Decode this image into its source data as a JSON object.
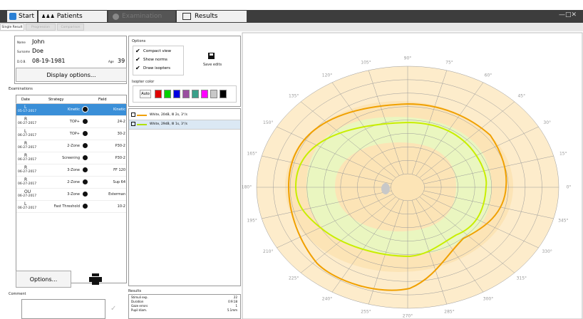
{
  "tabs": [
    "Start",
    "Patients",
    "Examination",
    "Results"
  ],
  "subtabs": [
    "Single Result",
    "Progression",
    "Comparison"
  ],
  "patient": {
    "name_label": "Name",
    "name": "John",
    "surname_label": "Surname",
    "surname": "Doe",
    "dob_label": "D.O.B.",
    "dob": "08-19-1981",
    "age_label": "Age",
    "age": "39"
  },
  "display_options": "Display options...",
  "examinations": {
    "label": "Examinations",
    "columns": [
      "Date",
      "Strategy",
      "Field"
    ],
    "rows": [
      [
        "L",
        "05-17-2017",
        "Kinetic",
        "Kinetic"
      ],
      [
        "R",
        "06-27-2017",
        "TOP+",
        "24-2"
      ],
      [
        "L",
        "06-27-2017",
        "TOP+",
        "30-2"
      ],
      [
        "R",
        "06-27-2017",
        "2-Zone",
        "P30-2"
      ],
      [
        "R",
        "06-27-2017",
        "Screening",
        "P30-2"
      ],
      [
        "R",
        "06-27-2017",
        "3-Zone",
        "FF 120"
      ],
      [
        "R",
        "06-27-2017",
        "2-Zone",
        "Sup 64"
      ],
      [
        "OU",
        "06-27-2017",
        "3-Zone",
        "Esterman"
      ],
      [
        "L",
        "06-27-2017",
        "Fast Threshold",
        "10-2"
      ]
    ]
  },
  "options_button": "Options...",
  "comment_label": "Comment",
  "options": {
    "label": "Options",
    "checks": [
      "Compact view",
      "Show norms",
      "Draw isopters"
    ],
    "save": "Save edits",
    "isopter_color": "Isopter color",
    "auto": "Auto",
    "colors": [
      "#e00000",
      "#00d000",
      "#0000e0",
      "#9a4fa0",
      "#3aa08a",
      "#ff00ff",
      "#c8c8c8",
      "#000000"
    ]
  },
  "isopters": [
    {
      "label": "White, 20dB, III 2s, 3°/s",
      "color": "#f0a000"
    },
    {
      "label": "White, 29dB, III 1s, 3°/s",
      "color": "#b0e000"
    }
  ],
  "results": {
    "label": "Results",
    "rows": [
      [
        "Stimuli exp.",
        "22"
      ],
      [
        "Duration",
        "0:9:18"
      ],
      [
        "Gaze errors",
        "1"
      ],
      [
        "Pupil diam.",
        "5.1mm"
      ]
    ]
  },
  "perimeter": {
    "angles": [
      {
        "value": 0,
        "label": "0°"
      },
      {
        "value": 15,
        "label": "15°"
      },
      {
        "value": 30,
        "label": "30°"
      },
      {
        "value": 45,
        "label": "45°"
      },
      {
        "value": 60,
        "label": "60°"
      },
      {
        "value": 75,
        "label": "75°"
      },
      {
        "value": 90,
        "label": "90°"
      },
      {
        "value": 105,
        "label": "105°"
      },
      {
        "value": 120,
        "label": "120°"
      },
      {
        "value": 135,
        "label": "135°"
      },
      {
        "value": 150,
        "label": "150°"
      },
      {
        "value": 165,
        "label": "165°"
      },
      {
        "value": 180,
        "label": "180°"
      },
      {
        "value": 195,
        "label": "195°"
      },
      {
        "value": 210,
        "label": "210°"
      },
      {
        "value": 225,
        "label": "225°"
      },
      {
        "value": 240,
        "label": "240°"
      },
      {
        "value": 255,
        "label": "255°"
      },
      {
        "value": 270,
        "label": "270°"
      },
      {
        "value": 285,
        "label": "285°"
      },
      {
        "value": 300,
        "label": "300°"
      },
      {
        "value": 315,
        "label": "315°"
      },
      {
        "value": 330,
        "label": "330°"
      },
      {
        "value": 345,
        "label": "345°"
      }
    ]
  }
}
